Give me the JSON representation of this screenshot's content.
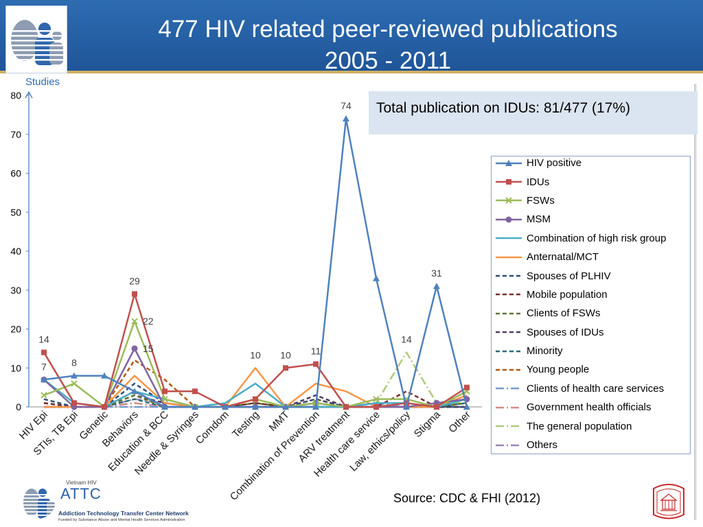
{
  "header": {
    "logo_icon": "hiv-research-logo-icon"
  },
  "annotation": {
    "text": "Total publication on IDUs: 81/477 (17%)",
    "background": "#dbe5f1"
  },
  "source": "Source: CDC & FHI (2012)",
  "footer": {
    "attc_logo": {
      "country": "Vietnam HIV",
      "name": "ATTC",
      "network": "Addiction Technology Transfer Center Network",
      "funding": "Funded by Substance Abuse and Mental Health Services Administration"
    },
    "attc_icon": "attc-figures-icon",
    "seal_icon": "university-seal-icon"
  },
  "colors": {
    "header": "#1f5598",
    "header_rule": "#cdb061",
    "axis_label": "#2b6cb3"
  },
  "chart_data": {
    "type": "line",
    "title": "477 HIV related peer-reviewed publications",
    "subtitle": "2005 - 2011",
    "xlabel": "",
    "ylabel": "Studies",
    "ylim": [
      0,
      80
    ],
    "yticks": [
      0,
      10,
      20,
      30,
      40,
      50,
      60,
      70,
      80
    ],
    "grid": false,
    "legend": "right",
    "categories": [
      "HIV Epi",
      "STIs, TB Epi",
      "Genetic",
      "Behaviors",
      "Education & BCC",
      "Needle & Syringes",
      "Comdom",
      "Testing",
      "MMT",
      "Combination of Prevention",
      "ARV treatment",
      "Health care service",
      "Law, ethics/policy",
      "Stigma",
      "Other"
    ],
    "series": [
      {
        "name": "HIV positive",
        "color": "#4f81bd",
        "style": "solid",
        "marker": "triangle",
        "values": [
          7,
          8,
          8,
          4,
          0,
          0,
          0,
          0,
          0,
          0,
          74,
          33,
          0,
          31,
          0
        ],
        "labeled": [
          0,
          1,
          10,
          13
        ],
        "label_position": "above"
      },
      {
        "name": "IDUs",
        "color": "#c0504d",
        "style": "solid",
        "marker": "square",
        "values": [
          14,
          1,
          0,
          29,
          4,
          4,
          0,
          2,
          10,
          11,
          0,
          0,
          1,
          0,
          5
        ],
        "labeled": [
          0,
          3,
          8,
          9
        ],
        "label_position": "above"
      },
      {
        "name": "FSWs",
        "color": "#9bbb59",
        "style": "solid",
        "marker": "x",
        "values": [
          3,
          6,
          0,
          22,
          2,
          0,
          0,
          2,
          0,
          1,
          0,
          2,
          2,
          0,
          4
        ],
        "labeled": [
          3
        ],
        "label_position": "right"
      },
      {
        "name": "MSM",
        "color": "#8064a2",
        "style": "solid",
        "marker": "circle",
        "values": [
          7,
          0,
          0,
          15,
          0,
          0,
          0,
          0,
          0,
          1,
          0,
          0,
          0,
          1,
          2
        ],
        "labeled": [
          3
        ],
        "label_position": "right"
      },
      {
        "name": "Combination of high risk group",
        "color": "#4bacc6",
        "style": "solid",
        "marker": "none",
        "values": [
          7,
          1,
          0,
          4,
          2,
          0,
          1,
          6,
          0,
          0,
          0,
          1,
          1,
          0,
          2
        ]
      },
      {
        "name": "Anternatal/MCT",
        "color": "#f79646",
        "style": "solid",
        "marker": "none",
        "values": [
          0,
          0,
          0,
          8,
          1,
          0,
          0,
          10,
          0,
          6,
          4,
          0,
          0,
          0,
          3
        ],
        "labeled": [
          7
        ],
        "label_position": "above"
      },
      {
        "name": "Spouses of PLHIV",
        "color": "#2c4d75",
        "style": "dash",
        "marker": "none",
        "values": [
          2,
          0,
          0,
          6,
          1,
          0,
          0,
          0,
          0,
          2,
          0,
          0,
          0,
          0,
          0
        ]
      },
      {
        "name": "Mobile population",
        "color": "#772c2a",
        "style": "dash",
        "marker": "none",
        "values": [
          1,
          0,
          0,
          4,
          0,
          0,
          0,
          1,
          0,
          1,
          0,
          0,
          4,
          0,
          0
        ]
      },
      {
        "name": "Clients of FSWs",
        "color": "#5f7530",
        "style": "dash",
        "marker": "none",
        "values": [
          0,
          0,
          0,
          3,
          0,
          0,
          0,
          1,
          0,
          0,
          0,
          0,
          0,
          0,
          1
        ]
      },
      {
        "name": "Spouses of IDUs",
        "color": "#4d3b62",
        "style": "dash",
        "marker": "none",
        "values": [
          0,
          0,
          0,
          3,
          1,
          0,
          0,
          0,
          0,
          3,
          0,
          0,
          0,
          0,
          0
        ]
      },
      {
        "name": "Minority",
        "color": "#276a7c",
        "style": "dash",
        "marker": "none",
        "values": [
          1,
          0,
          0,
          2,
          0,
          0,
          0,
          0,
          0,
          0,
          0,
          0,
          0,
          0,
          1
        ]
      },
      {
        "name": "Young people",
        "color": "#b65708",
        "style": "dash",
        "marker": "none",
        "values": [
          0,
          0,
          0,
          12,
          7,
          0,
          0,
          0,
          0,
          2,
          0,
          0,
          0,
          0,
          4
        ]
      },
      {
        "name": "Clients of health care services",
        "color": "#729aca",
        "style": "dashdot",
        "marker": "none",
        "values": [
          0,
          0,
          0,
          0,
          0,
          0,
          0,
          0,
          0,
          0,
          0,
          1,
          0,
          0,
          0
        ]
      },
      {
        "name": "Government health officials",
        "color": "#d38b89",
        "style": "dashdot",
        "marker": "none",
        "values": [
          0,
          0,
          0,
          1,
          0,
          0,
          0,
          0,
          0,
          0,
          0,
          0,
          0,
          0,
          0
        ]
      },
      {
        "name": "The general population",
        "color": "#afc97a",
        "style": "dashdot",
        "marker": "none",
        "values": [
          0,
          0,
          0,
          1,
          0,
          0,
          0,
          2,
          0,
          0,
          0,
          1,
          14,
          1,
          1
        ],
        "labeled": [
          12
        ],
        "label_position": "above"
      },
      {
        "name": "Others",
        "color": "#9983b5",
        "style": "dashdot",
        "marker": "none",
        "values": [
          0,
          0,
          0,
          2,
          1,
          0,
          0,
          0,
          0,
          0,
          0,
          0,
          0,
          0,
          0
        ]
      }
    ]
  }
}
